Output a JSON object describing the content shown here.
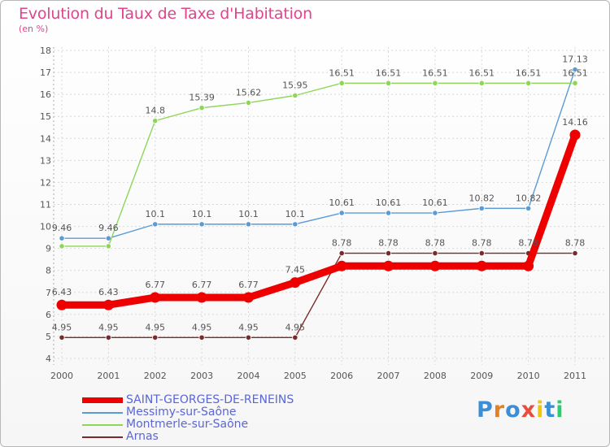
{
  "title": "Evolution du Taux de Taxe d'Habitation",
  "subtitle": "(en %)",
  "logo": {
    "text": "Proxiti",
    "letters": [
      {
        "ch": "P",
        "color": "#3c8fd6"
      },
      {
        "ch": "r",
        "color": "#e67e22"
      },
      {
        "ch": "o",
        "color": "#3c8fd6"
      },
      {
        "ch": "x",
        "color": "#e74c3c"
      },
      {
        "ch": "i",
        "color": "#f1c40f"
      },
      {
        "ch": "t",
        "color": "#3c8fd6"
      },
      {
        "ch": "i",
        "color": "#2ecc71"
      }
    ]
  },
  "chart_data": {
    "type": "line",
    "title": "Evolution du Taux de Taxe d'Habitation",
    "subtitle": "(en %)",
    "x": [
      "2000",
      "2001",
      "2002",
      "2003",
      "2004",
      "2005",
      "2006",
      "2007",
      "2008",
      "2009",
      "2010",
      "2011"
    ],
    "ylim": [
      4,
      18
    ],
    "yticks": [
      4,
      5,
      6,
      7,
      8,
      9,
      10,
      11,
      12,
      13,
      14,
      15,
      16,
      17,
      18
    ],
    "grid": true,
    "legend": "bottom-left",
    "series": [
      {
        "name": "SAINT-GEORGES-DE-RENEINS",
        "color": "#ee0000",
        "thick": true,
        "values": [
          6.43,
          6.43,
          6.77,
          6.77,
          6.77,
          7.45,
          8.2,
          8.2,
          8.2,
          8.2,
          8.2,
          14.16
        ],
        "labels": [
          "6.43",
          "6.43",
          "6.77",
          "6.77",
          "6.77",
          "7.45",
          "",
          "",
          "",
          "",
          "",
          "14.16"
        ]
      },
      {
        "name": "Messimy-sur-Saône",
        "color": "#5b9bd5",
        "thick": false,
        "values": [
          9.46,
          9.46,
          10.1,
          10.1,
          10.1,
          10.1,
          10.61,
          10.61,
          10.61,
          10.82,
          10.82,
          17.13
        ],
        "labels": [
          "9.46",
          "9.46",
          "10.1",
          "10.1",
          "10.1",
          "10.1",
          "10.61",
          "10.61",
          "10.61",
          "10.82",
          "10.82",
          "17.13"
        ]
      },
      {
        "name": "Montmerle-sur-Saône",
        "color": "#8ed659",
        "thick": false,
        "values": [
          9.1,
          9.1,
          14.8,
          15.39,
          15.62,
          15.95,
          16.51,
          16.51,
          16.51,
          16.51,
          16.51,
          16.51
        ],
        "labels": [
          "",
          "",
          "14.8",
          "15.39",
          "15.62",
          "15.95",
          "16.51",
          "16.51",
          "16.51",
          "16.51",
          "16.51",
          "16.51"
        ]
      },
      {
        "name": "Arnas",
        "color": "#7a2a2a",
        "thick": false,
        "values": [
          4.95,
          4.95,
          4.95,
          4.95,
          4.95,
          4.95,
          8.78,
          8.78,
          8.78,
          8.78,
          8.78,
          8.78
        ],
        "labels": [
          "4.95",
          "4.95",
          "4.95",
          "4.95",
          "4.95",
          "4.95",
          "8.78",
          "8.78",
          "8.78",
          "8.78",
          "8.78",
          "8.78"
        ]
      }
    ]
  }
}
